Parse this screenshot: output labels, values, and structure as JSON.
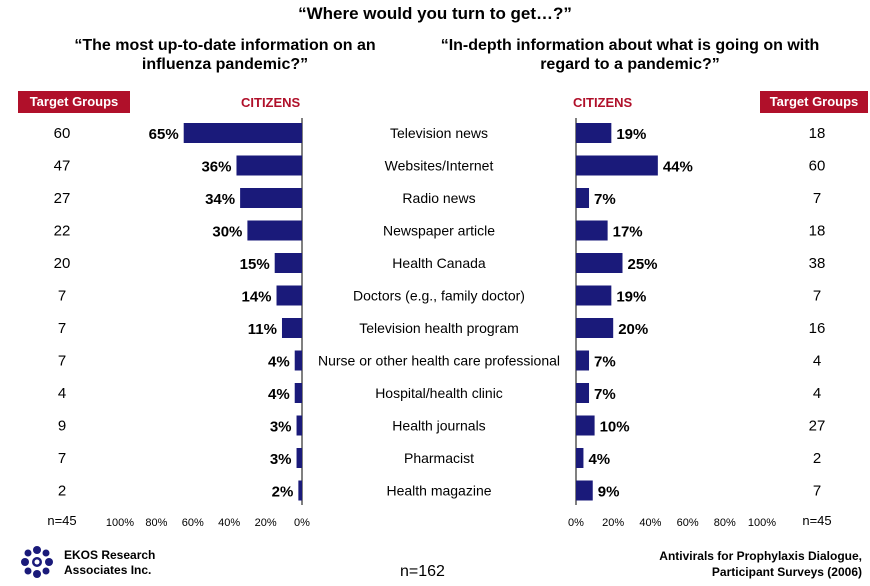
{
  "title": "“Where would you turn to get…?”",
  "left_question": "“The most up-to-date information on an influenza pandemic?”",
  "right_question": "“In-depth information about what is going on with regard to a pandemic?”",
  "target_groups_label": "Target Groups",
  "citizens_label": "CITIZENS",
  "left_n": "n=45",
  "right_n": "n=45",
  "center_n": "n=162",
  "org_name_line1": "EKOS Research",
  "org_name_line2": "Associates Inc.",
  "source_line1": "Antivirals for Prophylaxis Dialogue,",
  "source_line2": "Participant Surveys (2006)",
  "colors": {
    "bar": "#1a1a7a",
    "accent": "#b0102a"
  },
  "chart_data": {
    "type": "bar",
    "categories": [
      "Television news",
      "Websites/Internet",
      "Radio news",
      "Newspaper article",
      "Health Canada",
      "Doctors (e.g., family doctor)",
      "Television health program",
      "Nurse or other health care professional",
      "Hospital/health clinic",
      "Health journals",
      "Pharmacist",
      "Health magazine"
    ],
    "series": [
      {
        "name": "CITIZENS",
        "panel": "left",
        "values": [
          65,
          36,
          34,
          30,
          15,
          14,
          11,
          4,
          4,
          3,
          3,
          2
        ]
      },
      {
        "name": "CITIZENS",
        "panel": "right",
        "values": [
          19,
          44,
          7,
          17,
          25,
          19,
          20,
          7,
          7,
          10,
          4,
          9
        ]
      }
    ],
    "target_groups_left": [
      60,
      47,
      27,
      22,
      20,
      7,
      7,
      7,
      4,
      9,
      7,
      2
    ],
    "target_groups_right": [
      18,
      60,
      7,
      18,
      38,
      7,
      16,
      4,
      4,
      27,
      2,
      7
    ],
    "left_ticks": [
      "100%",
      "80%",
      "60%",
      "40%",
      "20%",
      "0%"
    ],
    "right_ticks": [
      "0%",
      "20%",
      "40%",
      "60%",
      "80%",
      "100%"
    ],
    "xlim": [
      0,
      100
    ],
    "value_suffix": "%"
  }
}
